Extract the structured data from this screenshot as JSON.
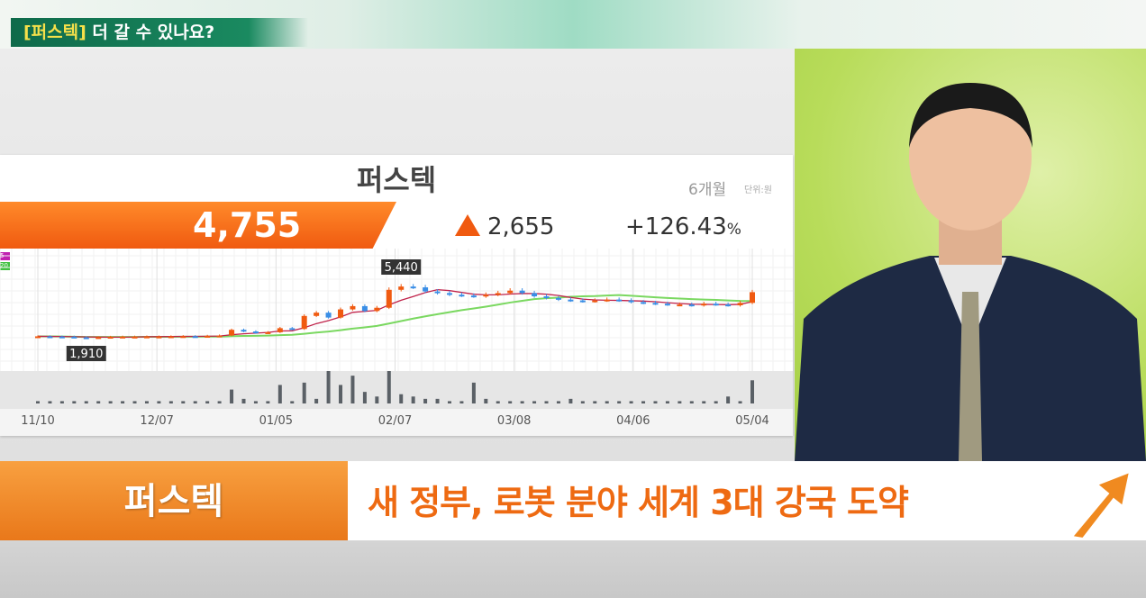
{
  "broadcast": {
    "topic_bracket": "[퍼스텍]",
    "topic_text": " 더 갈 수 있나요?"
  },
  "stock": {
    "name": "퍼스텍",
    "period": "6개월",
    "unit": "단위:원",
    "price": "4,755",
    "change": "2,655",
    "change_direction": "up",
    "change_pct": "+126.43",
    "pct_sign": "%"
  },
  "lower_third": {
    "label": "퍼스텍",
    "headline": "새 정부, 로봇 분야 세계 3대 강국 도약"
  },
  "colors": {
    "up": "#f05a10",
    "down": "#3a8ee6",
    "ma5": "#c0224a",
    "ma20": "#7ad860",
    "accent": "#ee6a12"
  },
  "chart_data": {
    "type": "candlestick",
    "x_ticks": [
      "11/10",
      "12/07",
      "01/05",
      "02/07",
      "03/08",
      "04/06",
      "05/04"
    ],
    "legend": [
      "5",
      "20"
    ],
    "annotations": [
      {
        "label": "5,440",
        "value": 5440,
        "kind": "high"
      },
      {
        "label": "1,910",
        "value": 1910,
        "kind": "low"
      }
    ],
    "ylim": [
      1910,
      5440
    ],
    "closes": [
      2050,
      2040,
      2030,
      1990,
      1960,
      2000,
      2020,
      2030,
      2030,
      2040,
      2040,
      2050,
      2060,
      2050,
      2080,
      2100,
      2450,
      2350,
      2250,
      2300,
      2550,
      2500,
      3300,
      3500,
      3200,
      3700,
      3900,
      3600,
      3800,
      4900,
      5100,
      5050,
      4800,
      4700,
      4600,
      4550,
      4500,
      4600,
      4700,
      4850,
      4700,
      4500,
      4400,
      4300,
      4250,
      4200,
      4250,
      4300,
      4250,
      4150,
      4100,
      4050,
      4000,
      4000,
      3950,
      4050,
      4000,
      3950,
      4100,
      4755
    ],
    "volume": [
      1,
      1,
      1,
      1,
      1,
      1,
      1,
      1,
      1,
      1,
      1,
      1,
      1,
      1,
      1,
      1,
      6,
      2,
      1,
      1,
      8,
      1,
      9,
      2,
      14,
      8,
      12,
      5,
      3,
      14,
      4,
      3,
      2,
      2,
      1,
      1,
      9,
      2,
      1,
      1,
      1,
      1,
      1,
      1,
      2,
      1,
      1,
      1,
      1,
      1,
      1,
      1,
      1,
      1,
      1,
      1,
      1,
      3,
      1,
      10
    ]
  }
}
